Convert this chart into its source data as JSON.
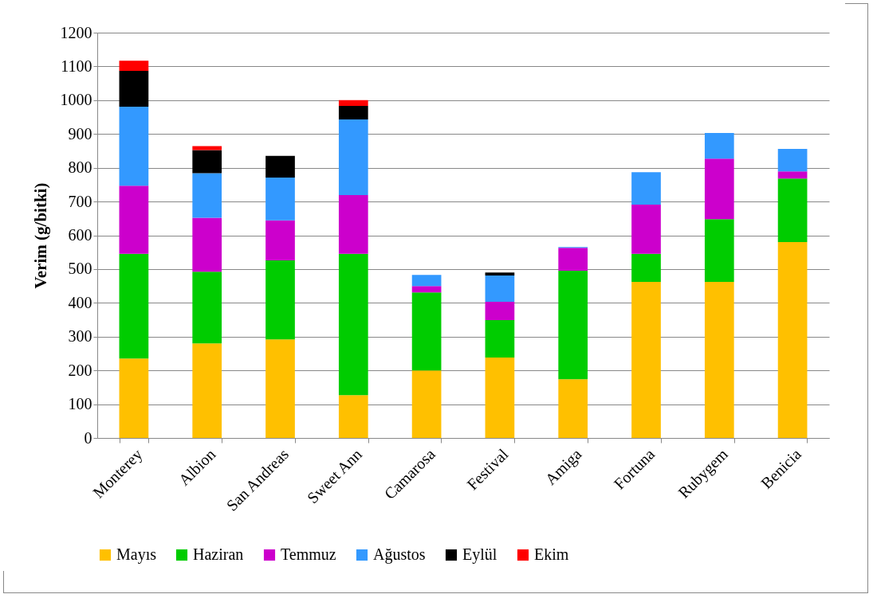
{
  "chart_data": {
    "type": "bar",
    "stacked": true,
    "ylabel": "Verim (g/bitki)",
    "categories": [
      "Monterey",
      "Albion",
      "San Andreas",
      "Sweet Ann",
      "Camarosa",
      "Festival",
      "Amiga",
      "Fortuna",
      "Rubygem",
      "Benicia"
    ],
    "series": [
      {
        "name": "Mayıs",
        "color": "#ffc000",
        "values": [
          235,
          280,
          292,
          127,
          200,
          238,
          174,
          462,
          462,
          580
        ]
      },
      {
        "name": "Haziran",
        "color": "#00cc00",
        "values": [
          310,
          212,
          234,
          418,
          231,
          111,
          321,
          83,
          186,
          188
        ]
      },
      {
        "name": "Temmuz",
        "color": "#cc00cc",
        "values": [
          202,
          160,
          118,
          174,
          19,
          54,
          68,
          146,
          179,
          21
        ]
      },
      {
        "name": "Ağustos",
        "color": "#3399ff",
        "values": [
          234,
          132,
          127,
          224,
          33,
          78,
          2,
          96,
          76,
          67
        ]
      },
      {
        "name": "Eylül",
        "color": "#000000",
        "values": [
          106,
          68,
          64,
          40,
          null,
          9,
          null,
          null,
          null,
          null
        ]
      },
      {
        "name": "Ekim",
        "color": "#ff0000",
        "values": [
          30,
          12,
          null,
          17,
          null,
          null,
          null,
          null,
          null,
          null
        ]
      }
    ],
    "ylim": [
      0,
      1200
    ],
    "yticks": [
      0,
      100,
      200,
      300,
      400,
      500,
      600,
      700,
      800,
      900,
      1000,
      1100,
      1200
    ],
    "grid": "y",
    "legend": "bottom"
  }
}
